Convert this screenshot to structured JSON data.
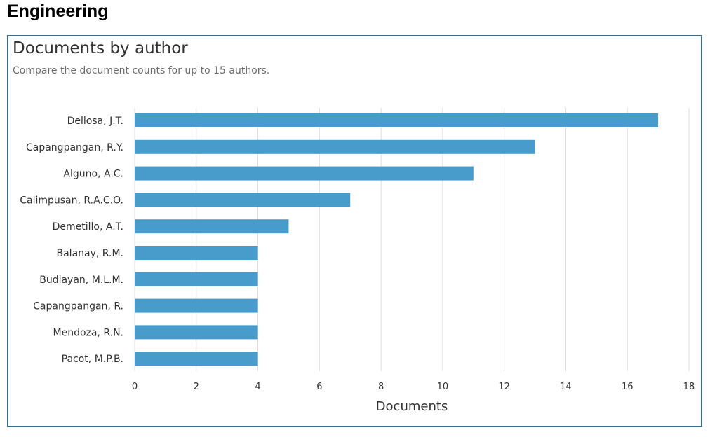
{
  "page": {
    "heading": "Engineering"
  },
  "panel": {
    "title": "Documents by author",
    "subtitle": "Compare the document counts for up to 15 authors."
  },
  "chart_data": {
    "type": "bar",
    "orientation": "horizontal",
    "categories": [
      "Dellosa, J.T.",
      "Capangpangan, R.Y.",
      "Alguno, A.C.",
      "Calimpusan, R.A.C.O.",
      "Demetillo, A.T.",
      "Balanay, R.M.",
      "Budlayan, M.L.M.",
      "Capangpangan, R.",
      "Mendoza, R.N.",
      "Pacot, M.P.B."
    ],
    "values": [
      17,
      13,
      11,
      7,
      5,
      4,
      4,
      4,
      4,
      4
    ],
    "xlabel": "Documents",
    "ylabel": "",
    "xlim": [
      0,
      18
    ],
    "xticks": [
      0,
      2,
      4,
      6,
      8,
      10,
      12,
      14,
      16,
      18
    ],
    "grid": true,
    "bar_color": "#479ccc",
    "grid_color": "#dcdcdc"
  }
}
